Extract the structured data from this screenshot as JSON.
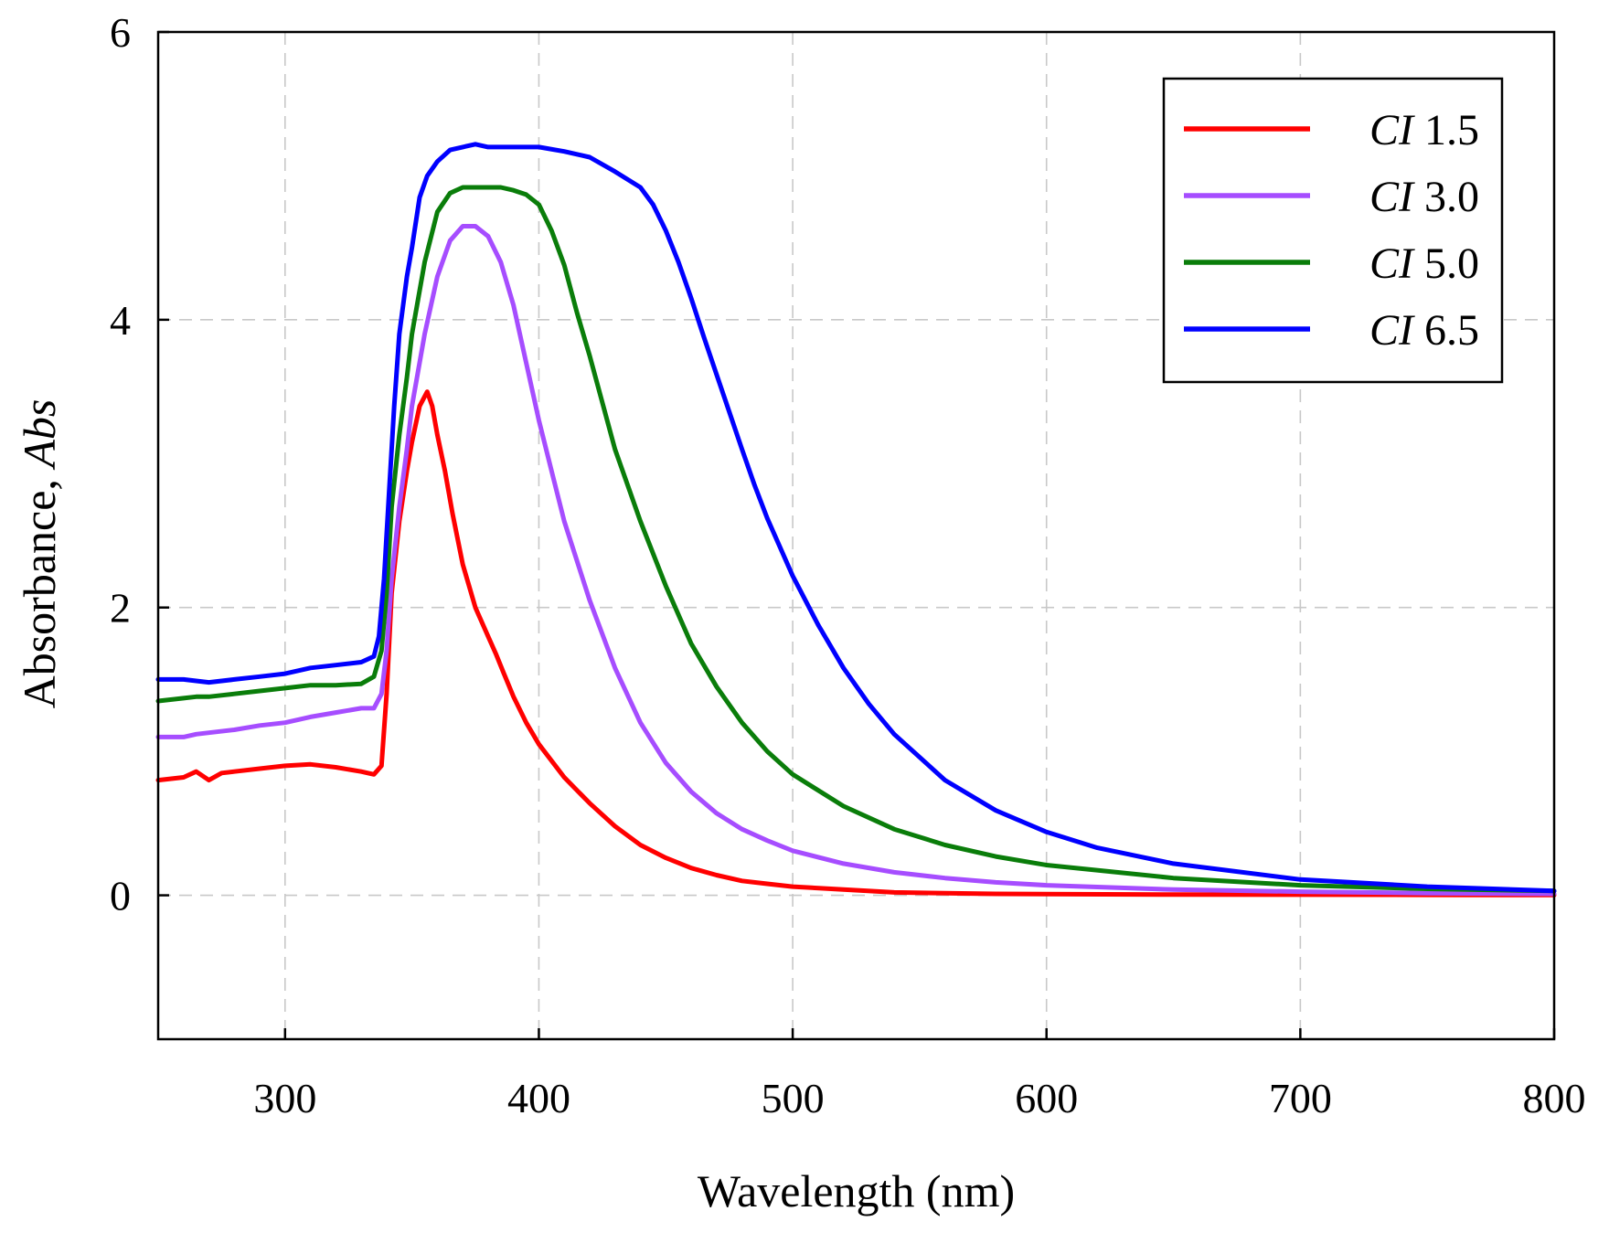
{
  "chart_data": {
    "type": "line",
    "title": "",
    "xlabel": "Wavelength (nm)",
    "ylabel_prefix": "Absorbance, ",
    "ylabel_italic": "Abs",
    "xlim": [
      250,
      800
    ],
    "ylim": [
      -1,
      6
    ],
    "xticks": [
      300,
      400,
      500,
      600,
      700,
      800
    ],
    "yticks": [
      0,
      2,
      4,
      6
    ],
    "xtick_labels": [
      "300",
      "400",
      "500",
      "600",
      "700",
      "800"
    ],
    "ytick_labels": [
      "0",
      "2",
      "4",
      "6"
    ],
    "grid": true,
    "legend_position": "top-right",
    "series": [
      {
        "name": "CI 1.5",
        "label_prefix": "CI",
        "label_value": "1.5",
        "color": "#ff0000",
        "x": [
          250,
          260,
          265,
          270,
          275,
          280,
          290,
          300,
          310,
          320,
          330,
          335,
          338,
          340,
          342,
          345,
          348,
          350,
          353,
          356,
          358,
          360,
          363,
          366,
          370,
          375,
          380,
          383,
          386,
          390,
          395,
          400,
          410,
          420,
          430,
          440,
          450,
          460,
          470,
          480,
          490,
          500,
          520,
          540,
          560,
          580,
          600,
          650,
          700,
          750,
          800
        ],
        "y": [
          0.8,
          0.82,
          0.86,
          0.8,
          0.85,
          0.86,
          0.88,
          0.9,
          0.91,
          0.89,
          0.86,
          0.84,
          0.9,
          1.4,
          2.1,
          2.6,
          2.95,
          3.15,
          3.4,
          3.5,
          3.4,
          3.2,
          2.95,
          2.65,
          2.3,
          2.0,
          1.8,
          1.68,
          1.55,
          1.38,
          1.2,
          1.05,
          0.82,
          0.64,
          0.48,
          0.35,
          0.26,
          0.19,
          0.14,
          0.1,
          0.08,
          0.06,
          0.04,
          0.02,
          0.015,
          0.01,
          0.008,
          0.005,
          0.004,
          0.003,
          0.002
        ]
      },
      {
        "name": "CI 3.0",
        "label_prefix": "CI",
        "label_value": "3.0",
        "color": "#a64dff",
        "x": [
          250,
          260,
          265,
          270,
          280,
          290,
          300,
          310,
          320,
          330,
          335,
          338,
          340,
          342,
          345,
          348,
          350,
          355,
          360,
          365,
          370,
          375,
          380,
          385,
          390,
          395,
          400,
          405,
          410,
          420,
          430,
          440,
          450,
          460,
          470,
          480,
          490,
          500,
          520,
          540,
          560,
          580,
          600,
          650,
          700,
          750,
          800
        ],
        "y": [
          1.1,
          1.1,
          1.12,
          1.13,
          1.15,
          1.18,
          1.2,
          1.24,
          1.27,
          1.3,
          1.3,
          1.4,
          1.7,
          2.2,
          2.7,
          3.1,
          3.4,
          3.9,
          4.3,
          4.55,
          4.65,
          4.65,
          4.58,
          4.4,
          4.1,
          3.7,
          3.3,
          2.95,
          2.6,
          2.05,
          1.58,
          1.2,
          0.92,
          0.72,
          0.57,
          0.46,
          0.38,
          0.31,
          0.22,
          0.16,
          0.12,
          0.09,
          0.07,
          0.04,
          0.025,
          0.015,
          0.01
        ]
      },
      {
        "name": "CI 5.0",
        "label_prefix": "CI",
        "label_value": "5.0",
        "color": "#0a7d0a",
        "x": [
          250,
          260,
          265,
          270,
          280,
          290,
          300,
          310,
          320,
          330,
          335,
          338,
          340,
          342,
          345,
          348,
          350,
          355,
          360,
          365,
          370,
          375,
          380,
          385,
          390,
          395,
          400,
          405,
          410,
          415,
          420,
          430,
          440,
          450,
          460,
          470,
          480,
          490,
          500,
          520,
          540,
          560,
          580,
          600,
          650,
          700,
          750,
          800
        ],
        "y": [
          1.35,
          1.37,
          1.38,
          1.38,
          1.4,
          1.42,
          1.44,
          1.46,
          1.46,
          1.47,
          1.52,
          1.7,
          2.1,
          2.7,
          3.2,
          3.6,
          3.9,
          4.4,
          4.75,
          4.88,
          4.92,
          4.92,
          4.92,
          4.92,
          4.9,
          4.87,
          4.8,
          4.62,
          4.38,
          4.05,
          3.75,
          3.1,
          2.6,
          2.15,
          1.75,
          1.45,
          1.2,
          1.0,
          0.84,
          0.62,
          0.46,
          0.35,
          0.27,
          0.21,
          0.12,
          0.07,
          0.045,
          0.03
        ]
      },
      {
        "name": "CI 6.5",
        "label_prefix": "CI",
        "label_value": "6.5",
        "color": "#0000ff",
        "x": [
          250,
          260,
          265,
          270,
          280,
          290,
          300,
          310,
          320,
          330,
          335,
          337,
          339,
          341,
          343,
          345,
          348,
          350,
          353,
          356,
          360,
          365,
          370,
          375,
          380,
          390,
          400,
          410,
          420,
          430,
          440,
          445,
          450,
          455,
          460,
          465,
          470,
          475,
          480,
          485,
          490,
          500,
          510,
          520,
          530,
          540,
          560,
          580,
          600,
          620,
          650,
          700,
          750,
          800
        ],
        "y": [
          1.5,
          1.5,
          1.49,
          1.48,
          1.5,
          1.52,
          1.54,
          1.58,
          1.6,
          1.62,
          1.66,
          1.8,
          2.2,
          2.8,
          3.4,
          3.9,
          4.3,
          4.5,
          4.85,
          5.0,
          5.1,
          5.18,
          5.2,
          5.22,
          5.2,
          5.2,
          5.2,
          5.17,
          5.13,
          5.03,
          4.92,
          4.8,
          4.62,
          4.4,
          4.15,
          3.88,
          3.62,
          3.36,
          3.1,
          2.85,
          2.62,
          2.22,
          1.88,
          1.58,
          1.33,
          1.12,
          0.8,
          0.59,
          0.44,
          0.33,
          0.22,
          0.11,
          0.06,
          0.03
        ]
      }
    ]
  }
}
